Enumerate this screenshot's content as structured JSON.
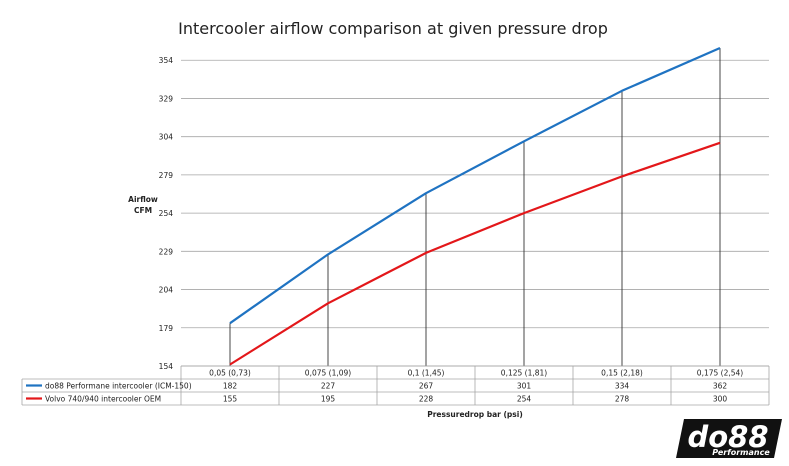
{
  "chart_data": {
    "type": "line",
    "title": "Intercooler airflow comparison at given pressure drop",
    "ylabel_line1": "Airflow",
    "ylabel_line2": "CFM",
    "xlabel": "Pressuredrop bar (psi)",
    "ylim": [
      154,
      362
    ],
    "yticks": [
      154,
      179,
      204,
      229,
      254,
      279,
      304,
      329,
      354
    ],
    "categories": [
      "0,05 (0,73)",
      "0,075 (1,09)",
      "0,1 (1,45)",
      "0,125 (1,81)",
      "0,15 (2,18)",
      "0,175 (2,54)"
    ],
    "series": [
      {
        "name": "do88 Performane intercooler (ICM-150)",
        "color": "#1f73c2",
        "values": [
          182,
          227,
          267,
          301,
          334,
          362
        ]
      },
      {
        "name": "Volvo 740/940 intercooler OEM",
        "color": "#e3171a",
        "values": [
          155,
          195,
          228,
          254,
          278,
          300
        ]
      }
    ],
    "grid": true,
    "legend": "data-table-below"
  },
  "logo": {
    "brand": "do88",
    "tagline": "Performance"
  }
}
